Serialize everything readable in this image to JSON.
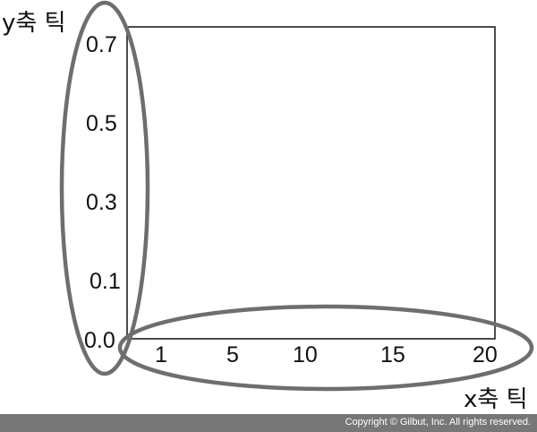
{
  "labels": {
    "y_axis_ticks": "y축 틱",
    "x_axis_ticks": "x축 틱"
  },
  "y_ticks": [
    "0.7",
    "0.5",
    "0.3",
    "0.1",
    "0.0"
  ],
  "x_ticks": [
    "1",
    "5",
    "10",
    "15",
    "20"
  ],
  "footer": {
    "copyright": "Copyright © Gilbut, Inc. All rights reserved."
  },
  "colors": {
    "ellipse": "#6e6e6e",
    "axes": "#111111",
    "footer_bg": "#777777"
  }
}
